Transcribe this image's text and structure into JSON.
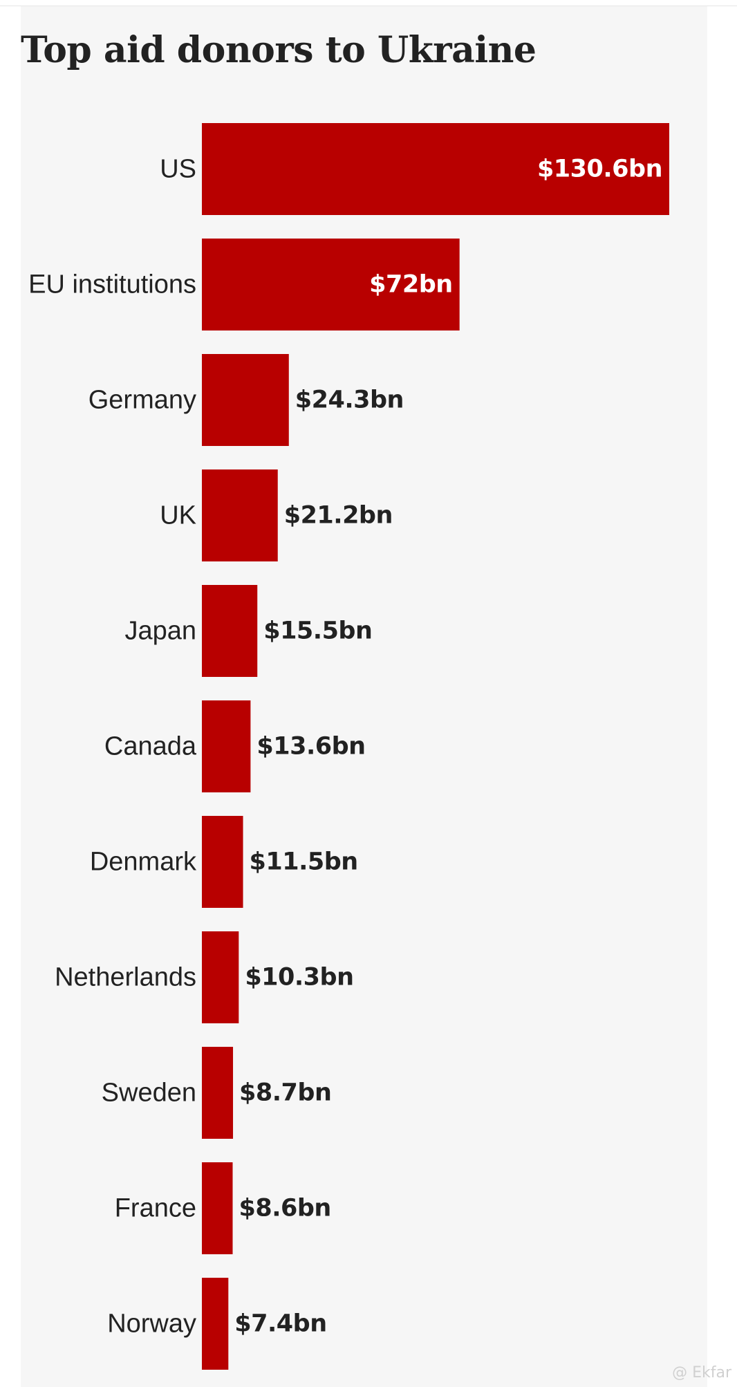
{
  "title": "Top aid donors to Ukraine",
  "colors": {
    "bar": "#b80000",
    "label_inside": "#ffffff",
    "label_outside": "#222222",
    "background": "#f6f6f6"
  },
  "chart_data": {
    "type": "bar",
    "orientation": "horizontal",
    "title": "Top aid donors to Ukraine",
    "xlabel": "",
    "ylabel": "",
    "unit": "US$ billion",
    "xlim": [
      0,
      130.6
    ],
    "grid": false,
    "legend": "none",
    "categories": [
      "US",
      "EU institutions",
      "Germany",
      "UK",
      "Japan",
      "Canada",
      "Denmark",
      "Netherlands",
      "Sweden",
      "France",
      "Norway"
    ],
    "values": [
      130.6,
      72,
      24.3,
      21.2,
      15.5,
      13.6,
      11.5,
      10.3,
      8.7,
      8.6,
      7.4
    ],
    "value_labels": [
      "$130.6bn",
      "$72bn",
      "$24.3bn",
      "$21.2bn",
      "$15.5bn",
      "$13.6bn",
      "$11.5bn",
      "$10.3bn",
      "$8.7bn",
      "$8.6bn",
      "$7.4bn"
    ]
  },
  "watermark": "@ Ekfar"
}
